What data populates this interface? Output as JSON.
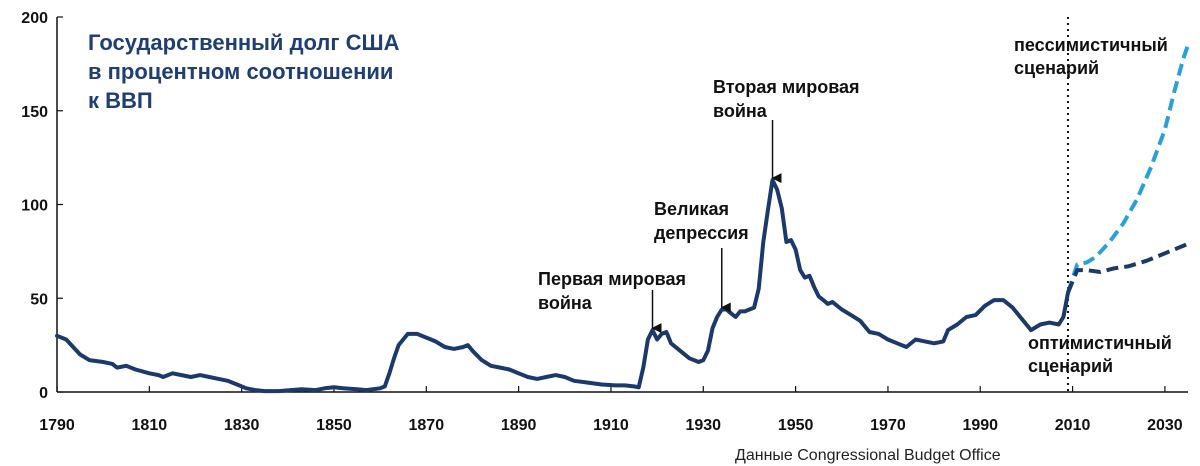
{
  "chart_data": {
    "type": "line",
    "title_lines": [
      "Государственный долг США",
      "в процентном соотношении",
      "к ВВП"
    ],
    "source": "Данные Congressional Budget Office",
    "xlim": [
      1790,
      2035
    ],
    "ylim": [
      0,
      200
    ],
    "x_ticks": [
      1790,
      1810,
      1830,
      1850,
      1870,
      1890,
      1910,
      1930,
      1950,
      1970,
      1990,
      2010,
      2030
    ],
    "y_ticks": [
      0,
      50,
      100,
      150,
      200
    ],
    "grid": false,
    "divider_year": 2009,
    "colors": {
      "historical": "#1b3a6b",
      "pessimistic": "#2aa0d8",
      "optimistic": "#1b3a6b",
      "title": "#1f3f73"
    },
    "series": [
      {
        "name": "historical",
        "style": "solid",
        "points": [
          [
            1790,
            30
          ],
          [
            1792,
            28
          ],
          [
            1795,
            20
          ],
          [
            1797,
            17
          ],
          [
            1800,
            16
          ],
          [
            1802,
            15
          ],
          [
            1803,
            13
          ],
          [
            1805,
            14
          ],
          [
            1807,
            12
          ],
          [
            1810,
            10
          ],
          [
            1812,
            9
          ],
          [
            1813,
            8
          ],
          [
            1815,
            10
          ],
          [
            1817,
            9
          ],
          [
            1819,
            8
          ],
          [
            1821,
            9
          ],
          [
            1823,
            8
          ],
          [
            1825,
            7
          ],
          [
            1827,
            6
          ],
          [
            1829,
            4
          ],
          [
            1831,
            2
          ],
          [
            1833,
            1
          ],
          [
            1835,
            0.5
          ],
          [
            1838,
            0.5
          ],
          [
            1843,
            1.5
          ],
          [
            1846,
            1
          ],
          [
            1848,
            2
          ],
          [
            1850,
            2.5
          ],
          [
            1852,
            2
          ],
          [
            1855,
            1.5
          ],
          [
            1857,
            1
          ],
          [
            1860,
            2
          ],
          [
            1861,
            3
          ],
          [
            1862,
            10
          ],
          [
            1863,
            18
          ],
          [
            1864,
            25
          ],
          [
            1865,
            28
          ],
          [
            1866,
            31
          ],
          [
            1868,
            31
          ],
          [
            1870,
            29
          ],
          [
            1872,
            27
          ],
          [
            1874,
            24
          ],
          [
            1876,
            23
          ],
          [
            1878,
            24
          ],
          [
            1879,
            25
          ],
          [
            1880,
            22
          ],
          [
            1882,
            17
          ],
          [
            1884,
            14
          ],
          [
            1886,
            13
          ],
          [
            1888,
            12
          ],
          [
            1890,
            10
          ],
          [
            1892,
            8
          ],
          [
            1894,
            7
          ],
          [
            1896,
            8
          ],
          [
            1898,
            9
          ],
          [
            1900,
            8
          ],
          [
            1902,
            6
          ],
          [
            1905,
            5
          ],
          [
            1908,
            4
          ],
          [
            1911,
            3.5
          ],
          [
            1913,
            3.5
          ],
          [
            1915,
            3
          ],
          [
            1916,
            2.5
          ],
          [
            1917,
            13
          ],
          [
            1918,
            28
          ],
          [
            1919,
            33
          ],
          [
            1920,
            28
          ],
          [
            1921,
            31
          ],
          [
            1922,
            32
          ],
          [
            1923,
            26
          ],
          [
            1925,
            22
          ],
          [
            1927,
            18
          ],
          [
            1929,
            16
          ],
          [
            1930,
            17
          ],
          [
            1931,
            22
          ],
          [
            1932,
            34
          ],
          [
            1933,
            40
          ],
          [
            1934,
            44
          ],
          [
            1935,
            44
          ],
          [
            1936,
            42
          ],
          [
            1937,
            40
          ],
          [
            1938,
            43
          ],
          [
            1939,
            43
          ],
          [
            1940,
            44
          ],
          [
            1941,
            45
          ],
          [
            1942,
            55
          ],
          [
            1943,
            80
          ],
          [
            1944,
            97
          ],
          [
            1945,
            113
          ],
          [
            1946,
            108
          ],
          [
            1947,
            98
          ],
          [
            1948,
            80
          ],
          [
            1949,
            81
          ],
          [
            1950,
            76
          ],
          [
            1951,
            65
          ],
          [
            1952,
            61
          ],
          [
            1953,
            62
          ],
          [
            1954,
            56
          ],
          [
            1955,
            51
          ],
          [
            1956,
            49
          ],
          [
            1957,
            47
          ],
          [
            1958,
            48
          ],
          [
            1959,
            46
          ],
          [
            1960,
            44
          ],
          [
            1962,
            41
          ],
          [
            1964,
            38
          ],
          [
            1966,
            32
          ],
          [
            1968,
            31
          ],
          [
            1970,
            28
          ],
          [
            1972,
            26
          ],
          [
            1974,
            24
          ],
          [
            1976,
            28
          ],
          [
            1978,
            27
          ],
          [
            1980,
            26
          ],
          [
            1982,
            27
          ],
          [
            1983,
            33
          ],
          [
            1985,
            36
          ],
          [
            1987,
            40
          ],
          [
            1989,
            41
          ],
          [
            1991,
            46
          ],
          [
            1993,
            49
          ],
          [
            1995,
            49
          ],
          [
            1997,
            45
          ],
          [
            1999,
            39
          ],
          [
            2001,
            33
          ],
          [
            2003,
            36
          ],
          [
            2005,
            37
          ],
          [
            2007,
            36
          ],
          [
            2008,
            40
          ],
          [
            2009,
            53
          ]
        ]
      },
      {
        "name": "пессимистичный сценарий",
        "style": "dashed",
        "points": [
          [
            2009,
            53
          ],
          [
            2011,
            68
          ],
          [
            2013,
            69
          ],
          [
            2015,
            72
          ],
          [
            2018,
            80
          ],
          [
            2021,
            90
          ],
          [
            2024,
            103
          ],
          [
            2027,
            120
          ],
          [
            2030,
            140
          ],
          [
            2032,
            160
          ],
          [
            2034,
            178
          ],
          [
            2035,
            185
          ]
        ]
      },
      {
        "name": "оптимистичный сценарий",
        "style": "dashed",
        "points": [
          [
            2009,
            53
          ],
          [
            2011,
            65
          ],
          [
            2013,
            65
          ],
          [
            2016,
            64
          ],
          [
            2019,
            66
          ],
          [
            2022,
            67
          ],
          [
            2026,
            70
          ],
          [
            2030,
            74
          ],
          [
            2035,
            79
          ]
        ]
      }
    ],
    "annotations": [
      {
        "lines": [
          "Первая мировая",
          "война"
        ],
        "arrow_year": 1919,
        "arrow_value": 33
      },
      {
        "lines": [
          "Великая",
          "депрессия"
        ],
        "arrow_year": 1934,
        "arrow_value": 44
      },
      {
        "lines": [
          "Вторая мировая",
          "война"
        ],
        "arrow_year": 1945,
        "arrow_value": 113
      }
    ],
    "scenario_labels": {
      "pessimistic": [
        "пессимистичный",
        "сценарий"
      ],
      "optimistic": [
        "оптимистичный",
        "сценарий"
      ]
    }
  }
}
